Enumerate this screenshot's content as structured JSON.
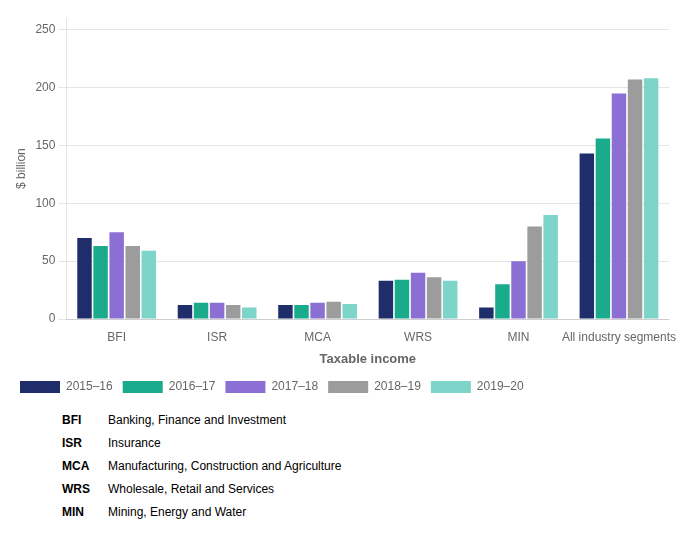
{
  "chart_data": {
    "type": "bar",
    "categories": [
      "BFI",
      "ISR",
      "MCA",
      "WRS",
      "MIN",
      "All industry segments"
    ],
    "series": [
      {
        "name": "2015–16",
        "color": "#1f2d6b",
        "values": [
          70,
          12,
          12,
          33,
          10,
          143
        ]
      },
      {
        "name": "2016–17",
        "color": "#1aaa8c",
        "values": [
          63,
          14,
          12,
          34,
          30,
          156
        ]
      },
      {
        "name": "2017–18",
        "color": "#8b6fd4",
        "values": [
          75,
          14,
          14,
          40,
          50,
          195
        ]
      },
      {
        "name": "2018–19",
        "color": "#9c9c9c",
        "values": [
          63,
          12,
          15,
          36,
          80,
          207
        ]
      },
      {
        "name": "2019–20",
        "color": "#7dd4c8",
        "values": [
          59,
          10,
          13,
          33,
          90,
          208
        ]
      }
    ],
    "ylabel": "$ billion",
    "xlabel": "Taxable income",
    "ylim": [
      0,
      260
    ],
    "yticks": [
      0,
      50,
      100,
      150,
      200,
      250
    ],
    "grid": true,
    "legend": "bottom",
    "annotations": [
      [
        "BFI",
        "Banking, Finance and Investment"
      ],
      [
        "ISR",
        "Insurance"
      ],
      [
        "MCA",
        "Manufacturing, Construction and Agriculture"
      ],
      [
        "WRS",
        "Wholesale, Retail and Services"
      ],
      [
        "MIN",
        "Mining, Energy and Water"
      ]
    ]
  }
}
